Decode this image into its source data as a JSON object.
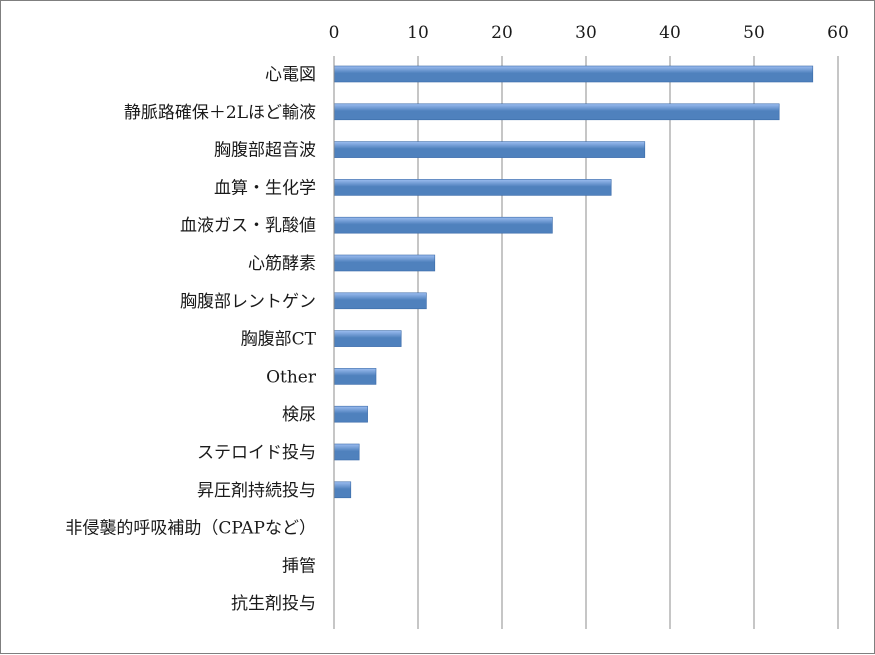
{
  "chart_data": {
    "type": "bar",
    "orientation": "horizontal",
    "title": "",
    "xlabel": "",
    "ylabel": "",
    "xlim": [
      0,
      60
    ],
    "x_ticks": [
      0,
      10,
      20,
      30,
      40,
      50,
      60
    ],
    "x_axis_position": "top",
    "grid": true,
    "legend": "none",
    "bar_color": "#4f81bd",
    "bar_highlight": "#9cbdf0",
    "categories": [
      "心電図",
      "静脈路確保＋2Lほど輸液",
      "胸腹部超音波",
      "血算・生化学",
      "血液ガス・乳酸値",
      "心筋酵素",
      "胸腹部レントゲン",
      "胸腹部CT",
      "Other",
      "検尿",
      "ステロイド投与",
      "昇圧剤持続投与",
      "非侵襲的呼吸補助（CPAPなど）",
      "挿管",
      "抗生剤投与"
    ],
    "values": [
      57,
      53,
      37,
      33,
      26,
      12,
      11,
      8,
      5,
      4,
      3,
      2,
      0,
      0,
      0
    ]
  }
}
